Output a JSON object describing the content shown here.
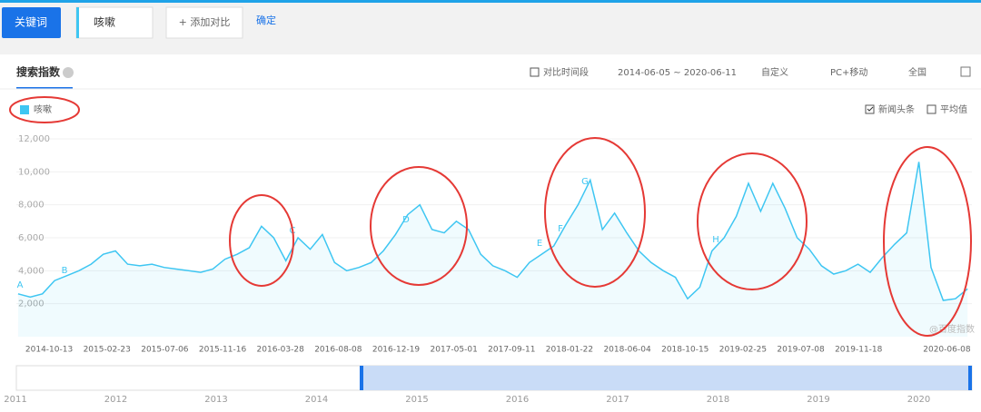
{
  "toolbar": {
    "keyword_button": "关键词",
    "input": "咳嗽",
    "add_compare": "+ 添加对比",
    "confirm": "确定"
  },
  "panel": {
    "tab": "搜索指数",
    "compare_period": "对比时间段",
    "date_range": "2014-06-05 ~ 2020-06-11",
    "custom": "自定义",
    "device": "PC+移动",
    "region": "全国",
    "news": "新闻头条",
    "average": "平均值",
    "watermark": "@百度指数"
  },
  "chart_data": {
    "type": "line",
    "x": [
      "2014-06-09",
      "2014-07-07",
      "2014-08-04",
      "2014-09-01",
      "2014-09-29",
      "2014-10-27",
      "2014-11-24",
      "2014-12-22",
      "2015-01-19",
      "2015-02-16",
      "2015-03-16",
      "2015-04-13",
      "2015-05-11",
      "2015-06-08",
      "2015-07-06",
      "2015-08-03",
      "2015-08-31",
      "2015-09-28",
      "2015-10-26",
      "2015-11-23",
      "2015-12-21",
      "2016-01-18",
      "2016-02-15",
      "2016-03-14",
      "2016-04-11",
      "2016-05-09",
      "2016-06-06",
      "2016-07-04",
      "2016-08-01",
      "2016-08-29",
      "2016-09-26",
      "2016-10-24",
      "2016-11-21",
      "2016-12-19",
      "2017-01-16",
      "2017-02-13",
      "2017-03-13",
      "2017-04-10",
      "2017-05-08",
      "2017-06-05",
      "2017-07-03",
      "2017-07-31",
      "2017-08-28",
      "2017-09-25",
      "2017-10-23",
      "2017-11-20",
      "2017-12-18",
      "2018-01-15",
      "2018-02-12",
      "2018-03-12",
      "2018-04-09",
      "2018-05-07",
      "2018-06-04",
      "2018-07-02",
      "2018-07-30",
      "2018-08-27",
      "2018-09-24",
      "2018-10-22",
      "2018-11-19",
      "2018-12-17",
      "2019-01-14",
      "2019-02-11",
      "2019-03-11",
      "2019-04-08",
      "2019-05-06",
      "2019-06-03",
      "2019-07-01",
      "2019-07-29",
      "2019-08-26",
      "2019-09-23",
      "2019-10-21",
      "2019-11-18",
      "2019-12-16",
      "2020-01-13",
      "2020-02-10",
      "2020-03-09",
      "2020-04-06",
      "2020-05-04",
      "2020-06-01"
    ],
    "series": [
      {
        "name": "咳嗽",
        "color": "#3ec6f2",
        "values": [
          2600,
          2400,
          2600,
          3400,
          3700,
          4000,
          4400,
          5000,
          5200,
          4400,
          4300,
          4400,
          4200,
          4100,
          4000,
          3900,
          4100,
          4700,
          5000,
          5400,
          6700,
          6000,
          4600,
          6000,
          5300,
          6200,
          4500,
          4000,
          4200,
          4500,
          5200,
          6200,
          7400,
          8000,
          6500,
          6300,
          7000,
          6500,
          5000,
          4300,
          4000,
          3600,
          4500,
          5000,
          5500,
          6800,
          8000,
          9500,
          6500,
          7500,
          6300,
          5200,
          4500,
          4000,
          3600,
          2300,
          3000,
          5200,
          6000,
          7300,
          9300,
          7600,
          9300,
          7800,
          6000,
          5300,
          4300,
          3800,
          4000,
          4400,
          3900,
          4800,
          5600,
          6300,
          10600,
          4200,
          2200,
          2300,
          2900
        ]
      }
    ],
    "xlim": [
      "2014-06-05",
      "2020-06-11"
    ],
    "xticks": [
      "2014-10-13",
      "2015-02-23",
      "2015-07-06",
      "2015-11-16",
      "2016-03-28",
      "2016-08-08",
      "2016-12-19",
      "2017-05-01",
      "2017-09-11",
      "2018-01-22",
      "2018-06-04",
      "2018-10-15",
      "2019-02-25",
      "2019-07-08",
      "2019-11-18",
      "2020-06-08"
    ],
    "ylim": [
      0,
      12000
    ],
    "yticks": [
      {
        "value": 2000,
        "label": "2,000"
      },
      {
        "value": 4000,
        "label": "4,000"
      },
      {
        "value": 6000,
        "label": "6,000"
      },
      {
        "value": 8000,
        "label": "8,000"
      },
      {
        "value": 10000,
        "label": "10,000"
      },
      {
        "value": 12000,
        "label": "12,000"
      }
    ],
    "grid": true,
    "annotations": [
      "A",
      "B",
      "C",
      "D",
      "E",
      "F",
      "G",
      "H"
    ]
  },
  "navigator": {
    "years": [
      "2011",
      "2012",
      "2013",
      "2014",
      "2015",
      "2016",
      "2017",
      "2018",
      "2019",
      "2020"
    ]
  }
}
